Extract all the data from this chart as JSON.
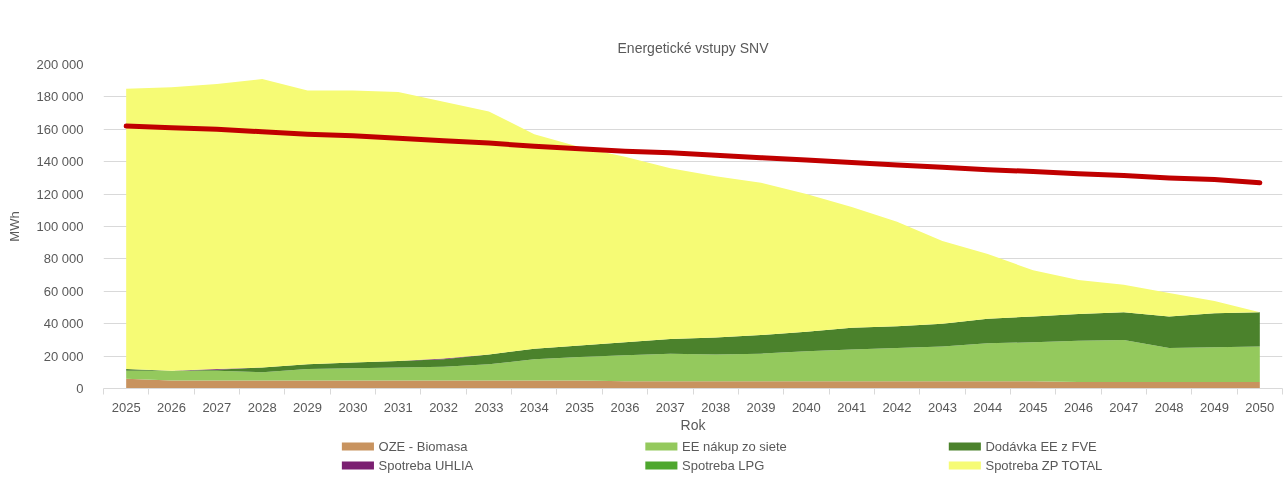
{
  "chart_data": {
    "type": "area",
    "stacked": true,
    "title": "Energetické vstupy SNV",
    "xlabel": "Rok",
    "ylabel": "MWh",
    "categories": [
      "2025",
      "2026",
      "2027",
      "2028",
      "2029",
      "2030",
      "2031",
      "2032",
      "2033",
      "2034",
      "2035",
      "2036",
      "2037",
      "2038",
      "2039",
      "2040",
      "2041",
      "2042",
      "2043",
      "2044",
      "2045",
      "2046",
      "2047",
      "2048",
      "2049",
      "2050"
    ],
    "ylim": [
      0,
      200000
    ],
    "yticks": [
      0,
      {
        "value": 20000,
        "label": "20 000"
      },
      {
        "value": 40000,
        "label": "40 000"
      },
      {
        "value": 60000,
        "label": "60 000"
      },
      {
        "value": 80000,
        "label": "80 000"
      },
      {
        "value": 100000,
        "label": "100 000"
      },
      {
        "value": 120000,
        "label": "120 000"
      },
      {
        "value": 140000,
        "label": "140 000"
      },
      {
        "value": 160000,
        "label": "160 000"
      },
      {
        "value": 180000,
        "label": "180 000"
      },
      {
        "value": 200000,
        "label": "200 000"
      }
    ],
    "grid": "y",
    "legend": "bottom",
    "series": [
      {
        "name": "OZE - Biomasa",
        "color": "#c8935f",
        "values": [
          6000,
          5000,
          5000,
          5000,
          5000,
          5000,
          5000,
          5000,
          5000,
          5000,
          5000,
          4500,
          4500,
          4500,
          4500,
          4500,
          4500,
          4500,
          4500,
          4500,
          4500,
          4000,
          4000,
          4000,
          4000,
          4000
        ]
      },
      {
        "name": "EE nákup zo siete",
        "color": "#94c95d",
        "values": [
          5000,
          6000,
          6000,
          5000,
          7000,
          7500,
          8000,
          8500,
          10000,
          13000,
          14500,
          16000,
          17000,
          16500,
          17000,
          18500,
          19500,
          20500,
          21500,
          23500,
          24000,
          25500,
          26000,
          21000,
          21500,
          22000
        ]
      },
      {
        "name": "Dodávka EE z FVE",
        "color": "#4b822c",
        "values": [
          1000,
          0,
          500,
          3000,
          3000,
          3500,
          4000,
          4500,
          6000,
          6500,
          7000,
          8000,
          9000,
          10500,
          11500,
          12000,
          13500,
          13500,
          14000,
          15000,
          16000,
          16500,
          17000,
          19500,
          21000,
          21000
        ]
      },
      {
        "name": "Spotreba UHLIA",
        "color": "#7b1f71",
        "values": [
          0,
          0,
          500,
          0,
          0,
          0,
          0,
          500,
          0,
          0,
          0,
          0,
          0,
          0,
          0,
          0,
          0,
          0,
          0,
          0,
          0,
          0,
          0,
          0,
          0,
          0
        ]
      },
      {
        "name": "Spotreba LPG",
        "color": "#4ea72e",
        "values": [
          null,
          null,
          null,
          null,
          null,
          null,
          null,
          null,
          null,
          null,
          null,
          null,
          null,
          null,
          null,
          null,
          null,
          null,
          null,
          null,
          null,
          null,
          null,
          null,
          null,
          null
        ]
      },
      {
        "name": "Spotreba ZP TOTAL",
        "color": "#f6fb75",
        "values": [
          173000,
          175000,
          176000,
          178000,
          169000,
          168000,
          166000,
          158500,
          150000,
          132500,
          122500,
          114500,
          105500,
          99500,
          94000,
          85000,
          74500,
          64500,
          51000,
          40000,
          28500,
          21000,
          17000,
          14500,
          7500,
          0
        ]
      },
      {
        "type": "line",
        "color": "#c00000",
        "values": [
          162000,
          161000,
          160000,
          158500,
          157000,
          156000,
          154500,
          153000,
          151500,
          149500,
          148000,
          146500,
          145500,
          144000,
          142500,
          141000,
          139500,
          138000,
          136500,
          135000,
          134000,
          132500,
          131500,
          130000,
          129000,
          127000
        ]
      }
    ]
  }
}
